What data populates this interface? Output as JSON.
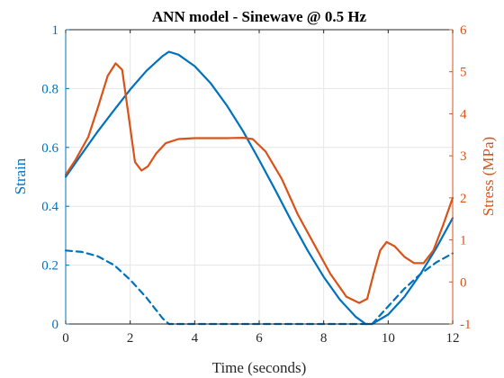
{
  "chart_data": {
    "type": "line",
    "title": "ANN model - Sinewave @ 0.5 Hz",
    "xlabel": "Time (seconds)",
    "ylabel_left": "Strain",
    "ylabel_right": "Stress (MPa)",
    "xlim": [
      0,
      12
    ],
    "ylim_left": [
      0,
      1
    ],
    "ylim_right": [
      -1,
      6
    ],
    "xticks": [
      "0",
      "2",
      "4",
      "6",
      "8",
      "10",
      "12"
    ],
    "yticks_left": [
      "0",
      "0.2",
      "0.4",
      "0.6",
      "0.8",
      "1"
    ],
    "yticks_right": [
      "-1",
      "0",
      "1",
      "2",
      "3",
      "4",
      "5",
      "6"
    ],
    "grid": true,
    "colors": {
      "left_axis": "#0072BD",
      "right_axis": "#D95319",
      "grid": "#e6e6e6",
      "axis_bottom": "#262626"
    },
    "series": [
      {
        "axis": "left",
        "style": "solid",
        "color": "#0072BD",
        "x": [
          0,
          0.5,
          1,
          1.5,
          2,
          2.5,
          3,
          3.2,
          3.5,
          4,
          4.5,
          5,
          5.5,
          6,
          6.5,
          7,
          7.5,
          8,
          8.5,
          9,
          9.3,
          9.5,
          10,
          10.5,
          11,
          11.5,
          12
        ],
        "y": [
          0.5,
          0.578,
          0.655,
          0.727,
          0.797,
          0.86,
          0.91,
          0.925,
          0.915,
          0.876,
          0.817,
          0.742,
          0.655,
          0.557,
          0.455,
          0.35,
          0.25,
          0.16,
          0.083,
          0.024,
          0.0,
          0.0,
          0.032,
          0.092,
          0.17,
          0.26,
          0.36
        ]
      },
      {
        "axis": "left",
        "style": "dashed",
        "color": "#0072BD",
        "x": [
          0,
          0.5,
          1,
          1.5,
          2,
          2.5,
          3,
          3.2,
          9.5,
          10,
          10.5,
          11,
          11.5,
          12
        ],
        "y": [
          0.25,
          0.245,
          0.23,
          0.2,
          0.15,
          0.09,
          0.02,
          0.0,
          0.0,
          0.06,
          0.12,
          0.17,
          0.21,
          0.24
        ]
      },
      {
        "axis": "right",
        "style": "solid",
        "color": "#D95319",
        "x": [
          0,
          0.3,
          0.7,
          1.0,
          1.3,
          1.55,
          1.75,
          1.95,
          2.15,
          2.35,
          2.55,
          2.8,
          3.1,
          3.5,
          4,
          5,
          5.5,
          5.8,
          6.2,
          6.7,
          7.2,
          7.7,
          8.2,
          8.7,
          9.1,
          9.35,
          9.55,
          9.75,
          9.95,
          10.2,
          10.5,
          10.8,
          11.1,
          11.4,
          11.7,
          12
        ],
        "y": [
          2.55,
          2.9,
          3.45,
          4.15,
          4.9,
          5.2,
          5.05,
          3.95,
          2.85,
          2.65,
          2.75,
          3.05,
          3.3,
          3.4,
          3.42,
          3.42,
          3.43,
          3.4,
          3.1,
          2.45,
          1.6,
          0.9,
          0.2,
          -0.35,
          -0.5,
          -0.4,
          0.2,
          0.75,
          0.95,
          0.85,
          0.6,
          0.45,
          0.45,
          0.75,
          1.35,
          2.0
        ]
      }
    ]
  }
}
